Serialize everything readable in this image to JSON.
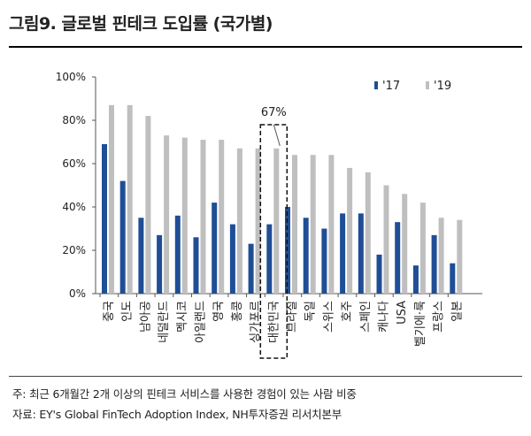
{
  "title": "그림9. 글로벌 핀테크 도입률 (국가별)",
  "note": "주: 최근 6개월간 2개 이상의 핀테크 서비스를 사용한 경험이 있는 사람 비중",
  "source": "자료: EY's Global FinTech Adoption Index, NH투자증권 리서치본부",
  "chart_data": {
    "type": "bar",
    "title": "",
    "xlabel": "",
    "ylabel": "",
    "ylim": [
      0,
      100
    ],
    "yticks": [
      "0%",
      "20%",
      "40%",
      "60%",
      "80%",
      "100%"
    ],
    "grid": false,
    "legend": "top-right",
    "categories": [
      "중국",
      "인도",
      "남아공",
      "네덜란드",
      "멕시코",
      "아일랜드",
      "영국",
      "홍콩",
      "싱가포르",
      "대한민국",
      "브라질",
      "독일",
      "스위스",
      "호주",
      "스페인",
      "캐나다",
      "USA",
      "벨기에·룩",
      "프랑스",
      "일본"
    ],
    "series": [
      {
        "name": "'17",
        "color": "#1f4e96",
        "values": [
          69,
          52,
          35,
          27,
          36,
          26,
          42,
          32,
          23,
          32,
          40,
          35,
          30,
          37,
          37,
          18,
          33,
          13,
          27,
          14
        ]
      },
      {
        "name": "'19",
        "color": "#bfbfbf",
        "values": [
          87,
          87,
          82,
          73,
          72,
          71,
          71,
          67,
          67,
          67,
          64,
          64,
          64,
          58,
          56,
          50,
          46,
          42,
          35,
          34
        ]
      }
    ],
    "highlight": {
      "category": "대한민국",
      "label": "67%"
    }
  }
}
